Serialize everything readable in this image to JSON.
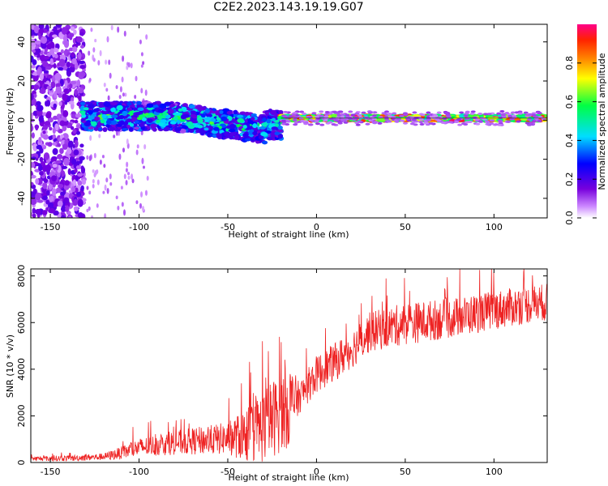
{
  "title": "C2E2.2023.143.19.19.G07",
  "colors": {
    "snr_line": "#ee2222",
    "frame": "#000000"
  },
  "chart_data": [
    {
      "type": "heatmap",
      "name": "spectrogram",
      "xlabel": "Height of straight line (km)",
      "ylabel": "Frequency (Hz)",
      "xlim": [
        -161,
        130
      ],
      "ylim": [
        -50,
        49
      ],
      "xticks": [
        -150,
        -100,
        -50,
        0,
        50,
        100
      ],
      "yticks": [
        -40,
        -20,
        0,
        20,
        40
      ],
      "grid": false,
      "colorbar": {
        "label": "Normalized spectral amplitude",
        "range": [
          0,
          1
        ],
        "ticks": [
          0.0,
          0.2,
          0.4,
          0.6,
          0.8
        ],
        "colormap": "rainbow (white-purple-blue-cyan-green-yellow-orange-red)"
      },
      "description_of_content": [
        {
          "x_range": [
            -161,
            -132
          ],
          "freq_range": [
            -50,
            49
          ],
          "amplitude": "low, scattered (purple)"
        },
        {
          "x_range": [
            -130,
            -20
          ],
          "freq_center_start": 2,
          "freq_center_end": -8,
          "freq_spread": 6,
          "amplitude": "medium to high (blue-cyan-green)"
        },
        {
          "x_range": [
            -20,
            130
          ],
          "freq_center": 1,
          "freq_spread": 1.5,
          "amplitude": "high (green-yellow-red)"
        }
      ]
    },
    {
      "type": "line",
      "name": "snr",
      "xlabel": "Height of straight line (km)",
      "ylabel": "SNR (10 * v/v)",
      "xlim": [
        -161,
        130
      ],
      "ylim": [
        0,
        8300
      ],
      "xticks": [
        -150,
        -100,
        -50,
        0,
        50,
        100
      ],
      "yticks": [
        0,
        2000,
        4000,
        6000,
        8000
      ],
      "grid": false,
      "series": [
        {
          "trend_x": [
            -161,
            -140,
            -120,
            -110,
            -100,
            -80,
            -60,
            -40,
            -30,
            -20,
            -15,
            -10,
            -5,
            0,
            10,
            20,
            30,
            40,
            50,
            60,
            80,
            100,
            120,
            130
          ],
          "trend_y": [
            150,
            170,
            230,
            380,
            600,
            800,
            900,
            1050,
            1400,
            2000,
            2300,
            2700,
            3200,
            3700,
            4200,
            4800,
            5500,
            5700,
            5850,
            5950,
            6150,
            6450,
            6700,
            6800
          ],
          "noise_amplitude_x": [
            -161,
            -120,
            -100,
            -50,
            -30,
            -15,
            -10,
            0,
            50,
            130
          ],
          "noise_amplitude_y": [
            100,
            150,
            400,
            700,
            1600,
            1800,
            700,
            800,
            900,
            800
          ]
        }
      ]
    }
  ]
}
